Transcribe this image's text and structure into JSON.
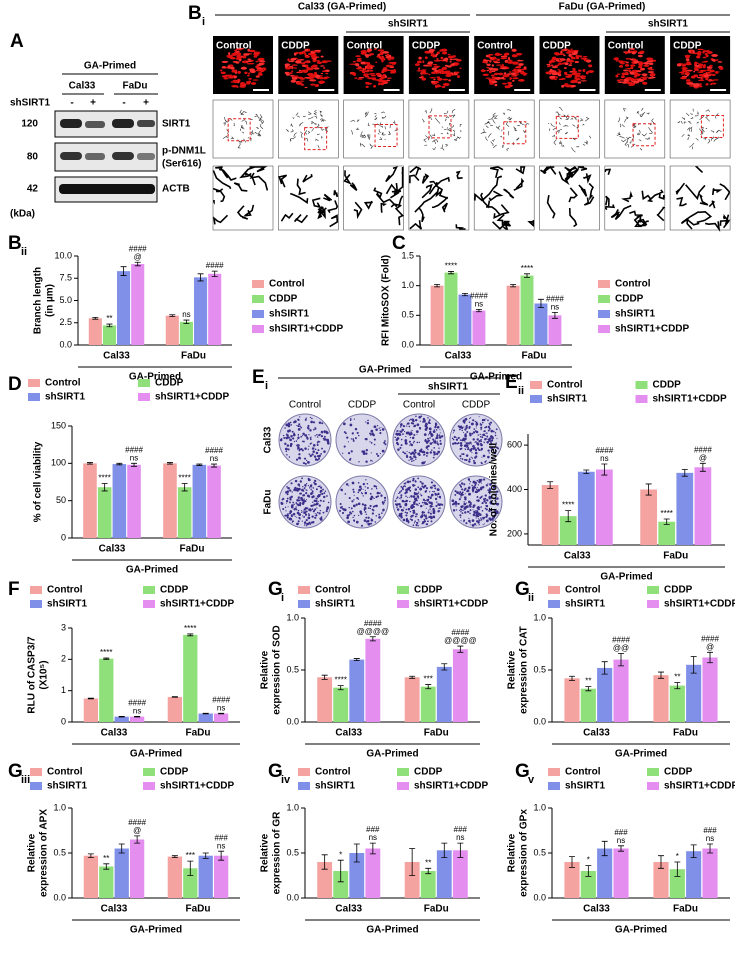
{
  "panel_A": {
    "label": "A",
    "group": "GA-Primed",
    "cell_lines": [
      "Cal33",
      "FaDu"
    ],
    "treatment_label": "shSIRT1",
    "lanes": [
      "-",
      "+",
      "-",
      "+"
    ],
    "proteins": [
      "SIRT1",
      "p-DNM1L",
      "ACTB"
    ],
    "protein_note": "(Ser616)",
    "markers": [
      "120",
      "80",
      "42"
    ],
    "unit": "(kDa)"
  },
  "panel_Bi": {
    "label": "B",
    "sub": "i",
    "groups": [
      "Cal33 (GA-Primed)",
      "FaDu (GA-Primed)"
    ],
    "subgroup": "shSIRT1",
    "images": [
      "Control",
      "CDDP",
      "Control",
      "CDDP",
      "Control",
      "CDDP",
      "Control",
      "CDDP"
    ]
  },
  "panel_Ei": {
    "label": "E",
    "sub": "i",
    "title": "GA-Primed",
    "subgroup": "shSIRT1",
    "columns": [
      "Control",
      "CDDP",
      "Control",
      "CDDP"
    ],
    "rows": [
      "Cal33",
      "FaDu"
    ]
  },
  "chart_data": [
    {
      "type": "bar",
      "panel": "B",
      "sub": "ii",
      "legend": "right",
      "ylabel": [
        "Branch length",
        "(in µm)"
      ],
      "categories": [
        "Cal33",
        "FaDu"
      ],
      "group_label": "GA-Primed",
      "ylim": [
        0,
        10
      ],
      "yticks": [
        {
          "value": 0,
          "label": "0.0"
        },
        {
          "value": 2.5,
          "label": "2.5"
        },
        {
          "value": 5,
          "label": "5.0"
        },
        {
          "value": 7.5,
          "label": "7.5"
        },
        {
          "value": 10,
          "label": "10.0"
        }
      ],
      "series": [
        {
          "name": "Control",
          "color": "#f4a3a0",
          "values": [
            3.0,
            3.3
          ],
          "errors": [
            0.1,
            0.1
          ],
          "marks": [
            null,
            null
          ]
        },
        {
          "name": "CDDP",
          "color": "#8fe07a",
          "values": [
            2.2,
            2.6
          ],
          "errors": [
            0.15,
            0.2
          ],
          "marks": [
            [
              "**"
            ],
            [
              "ns"
            ]
          ]
        },
        {
          "name": "shSIRT1",
          "color": "#8090e8",
          "values": [
            8.3,
            7.6
          ],
          "errors": [
            0.5,
            0.4
          ],
          "marks": [
            null,
            null
          ]
        },
        {
          "name": "shSIRT1+CDDP",
          "color": "#e48ff0",
          "values": [
            9.1,
            8.0
          ],
          "errors": [
            0.2,
            0.3
          ],
          "marks": [
            [
              "####",
              "@"
            ],
            [
              "####"
            ]
          ]
        }
      ]
    },
    {
      "type": "bar",
      "panel": "C",
      "legend": "right",
      "ylabel": [
        "RFI MitoSOX (Fold)"
      ],
      "categories": [
        "Cal33",
        "FaDu"
      ],
      "group_label": "GA-Primed",
      "ylim": [
        0,
        1.5
      ],
      "yticks": [
        {
          "value": 0,
          "label": "0.0"
        },
        {
          "value": 0.5,
          "label": "0.5"
        },
        {
          "value": 1,
          "label": "1.0"
        },
        {
          "value": 1.5,
          "label": "1.5"
        }
      ],
      "series": [
        {
          "name": "Control",
          "color": "#f4a3a0",
          "values": [
            1.0,
            1.0
          ],
          "errors": [
            0.02,
            0.02
          ],
          "marks": [
            null,
            null
          ]
        },
        {
          "name": "CDDP",
          "color": "#8fe07a",
          "values": [
            1.22,
            1.17
          ],
          "errors": [
            0.02,
            0.03
          ],
          "marks": [
            [
              "****"
            ],
            [
              "****"
            ]
          ]
        },
        {
          "name": "shSIRT1",
          "color": "#8090e8",
          "values": [
            0.85,
            0.7
          ],
          "errors": [
            0.02,
            0.07
          ],
          "marks": [
            null,
            null
          ]
        },
        {
          "name": "shSIRT1+CDDP",
          "color": "#e48ff0",
          "values": [
            0.58,
            0.5
          ],
          "errors": [
            0.02,
            0.05
          ],
          "marks": [
            [
              "####",
              "ns"
            ],
            [
              "####",
              "ns"
            ]
          ]
        }
      ]
    },
    {
      "type": "bar",
      "panel": "D",
      "legend": "top",
      "ylabel": [
        "% of cell viability"
      ],
      "categories": [
        "Cal33",
        "FaDu"
      ],
      "group_label": "GA-Primed",
      "ylim": [
        0,
        150
      ],
      "yticks": [
        0,
        50,
        100,
        150
      ],
      "series": [
        {
          "name": "Control",
          "color": "#f4a3a0",
          "values": [
            100,
            100
          ],
          "errors": [
            1,
            1
          ],
          "marks": [
            null,
            null
          ]
        },
        {
          "name": "CDDP",
          "color": "#8fe07a",
          "values": [
            68,
            68
          ],
          "errors": [
            5,
            5
          ],
          "marks": [
            [
              "****"
            ],
            [
              "****"
            ]
          ]
        },
        {
          "name": "shSIRT1",
          "color": "#8090e8",
          "values": [
            99,
            98
          ],
          "errors": [
            1,
            1
          ],
          "marks": [
            null,
            null
          ]
        },
        {
          "name": "shSIRT1+CDDP",
          "color": "#e48ff0",
          "values": [
            98,
            97
          ],
          "errors": [
            2,
            2
          ],
          "marks": [
            [
              "####",
              "ns"
            ],
            [
              "####",
              "ns"
            ]
          ]
        }
      ]
    },
    {
      "type": "bar",
      "panel": "E",
      "sub": "ii",
      "legend": "top",
      "ylabel": [
        "No. of colonies/well"
      ],
      "categories": [
        "Cal33",
        "FaDu"
      ],
      "group_label": "GA-Primed",
      "ylim": [
        150,
        650
      ],
      "yticks": [
        200,
        400,
        600
      ],
      "series": [
        {
          "name": "Control",
          "color": "#f4a3a0",
          "values": [
            420,
            400
          ],
          "errors": [
            15,
            25
          ],
          "marks": [
            null,
            null
          ]
        },
        {
          "name": "CDDP",
          "color": "#8fe07a",
          "values": [
            280,
            255
          ],
          "errors": [
            25,
            12
          ],
          "marks": [
            [
              "****"
            ],
            [
              "****"
            ]
          ]
        },
        {
          "name": "shSIRT1",
          "color": "#8090e8",
          "values": [
            480,
            475
          ],
          "errors": [
            8,
            15
          ],
          "marks": [
            null,
            null
          ]
        },
        {
          "name": "shSIRT1+CDDP",
          "color": "#e48ff0",
          "values": [
            490,
            500
          ],
          "errors": [
            25,
            18
          ],
          "marks": [
            [
              "####",
              "ns"
            ],
            [
              "####",
              "@"
            ]
          ]
        }
      ]
    },
    {
      "type": "bar",
      "panel": "F",
      "legend": "top",
      "ylabel": [
        "RLU of CASP3/7",
        "(X10⁵)"
      ],
      "categories": [
        "Cal33",
        "FaDu"
      ],
      "group_label": "GA-Primed",
      "ylim": [
        0,
        3
      ],
      "yticks": [
        0,
        1,
        2,
        3
      ],
      "series": [
        {
          "name": "Control",
          "color": "#f4a3a0",
          "values": [
            0.75,
            0.8
          ],
          "errors": [
            0.01,
            0.01
          ],
          "marks": [
            null,
            null
          ]
        },
        {
          "name": "CDDP",
          "color": "#8fe07a",
          "values": [
            2.02,
            2.78
          ],
          "errors": [
            0.02,
            0.03
          ],
          "marks": [
            [
              "****"
            ],
            [
              "****"
            ]
          ]
        },
        {
          "name": "shSIRT1",
          "color": "#8090e8",
          "values": [
            0.17,
            0.27
          ],
          "errors": [
            0.01,
            0.01
          ],
          "marks": [
            null,
            null
          ]
        },
        {
          "name": "shSIRT1+CDDP",
          "color": "#e48ff0",
          "values": [
            0.17,
            0.27
          ],
          "errors": [
            0.01,
            0.01
          ],
          "marks": [
            [
              "####",
              "ns"
            ],
            [
              "####",
              "ns"
            ]
          ]
        }
      ]
    },
    {
      "type": "bar",
      "panel": "G",
      "sub": "i",
      "legend": "top",
      "ylabel": [
        "Relative",
        "expression of SOD"
      ],
      "categories": [
        "Cal33",
        "FaDu"
      ],
      "group_label": "GA-Primed",
      "ylim": [
        0,
        1
      ],
      "yticks": [
        {
          "value": 0,
          "label": "0.0"
        },
        {
          "value": 0.5,
          "label": "0.5"
        },
        {
          "value": 1,
          "label": "1.0"
        }
      ],
      "series": [
        {
          "name": "Control",
          "color": "#f4a3a0",
          "values": [
            0.43,
            0.43
          ],
          "errors": [
            0.02,
            0.01
          ],
          "marks": [
            null,
            null
          ]
        },
        {
          "name": "CDDP",
          "color": "#8fe07a",
          "values": [
            0.33,
            0.34
          ],
          "errors": [
            0.02,
            0.02
          ],
          "marks": [
            [
              "****"
            ],
            [
              "***"
            ]
          ]
        },
        {
          "name": "shSIRT1",
          "color": "#8090e8",
          "values": [
            0.6,
            0.53
          ],
          "errors": [
            0.01,
            0.03
          ],
          "marks": [
            null,
            null
          ]
        },
        {
          "name": "shSIRT1+CDDP",
          "color": "#e48ff0",
          "values": [
            0.8,
            0.7
          ],
          "errors": [
            0.02,
            0.03
          ],
          "marks": [
            [
              "####",
              "@@@@"
            ],
            [
              "####",
              "@@@@"
            ]
          ]
        }
      ]
    },
    {
      "type": "bar",
      "panel": "G",
      "sub": "ii",
      "legend": "top",
      "ylabel": [
        "Relative",
        "expression of CAT"
      ],
      "categories": [
        "Cal33",
        "FaDu"
      ],
      "group_label": "GA-Primed",
      "ylim": [
        0,
        1
      ],
      "yticks": [
        {
          "value": 0,
          "label": "0.0"
        },
        {
          "value": 0.5,
          "label": "0.5"
        },
        {
          "value": 1,
          "label": "1.0"
        }
      ],
      "series": [
        {
          "name": "Control",
          "color": "#f4a3a0",
          "values": [
            0.42,
            0.45
          ],
          "errors": [
            0.02,
            0.03
          ],
          "marks": [
            null,
            null
          ]
        },
        {
          "name": "CDDP",
          "color": "#8fe07a",
          "values": [
            0.32,
            0.35
          ],
          "errors": [
            0.02,
            0.03
          ],
          "marks": [
            [
              "**"
            ],
            [
              "**"
            ]
          ]
        },
        {
          "name": "shSIRT1",
          "color": "#8090e8",
          "values": [
            0.52,
            0.55
          ],
          "errors": [
            0.06,
            0.08
          ],
          "marks": [
            null,
            null
          ]
        },
        {
          "name": "shSIRT1+CDDP",
          "color": "#e48ff0",
          "values": [
            0.6,
            0.62
          ],
          "errors": [
            0.06,
            0.05
          ],
          "marks": [
            [
              "####",
              "@@"
            ],
            [
              "####",
              "@"
            ]
          ]
        }
      ]
    },
    {
      "type": "bar",
      "panel": "G",
      "sub": "iii",
      "legend": "top",
      "ylabel": [
        "Relative",
        "expression of APX"
      ],
      "categories": [
        "Cal33",
        "FaDu"
      ],
      "group_label": "GA-Primed",
      "ylim": [
        0,
        1
      ],
      "yticks": [
        {
          "value": 0,
          "label": "0.0"
        },
        {
          "value": 0.5,
          "label": "0.5"
        },
        {
          "value": 1,
          "label": "1.0"
        }
      ],
      "series": [
        {
          "name": "Control",
          "color": "#f4a3a0",
          "values": [
            0.47,
            0.46
          ],
          "errors": [
            0.02,
            0.01
          ],
          "marks": [
            null,
            null
          ]
        },
        {
          "name": "CDDP",
          "color": "#8fe07a",
          "values": [
            0.35,
            0.33
          ],
          "errors": [
            0.03,
            0.08
          ],
          "marks": [
            [
              "**"
            ],
            [
              "***"
            ]
          ]
        },
        {
          "name": "shSIRT1",
          "color": "#8090e8",
          "values": [
            0.55,
            0.47
          ],
          "errors": [
            0.05,
            0.03
          ],
          "marks": [
            null,
            null
          ]
        },
        {
          "name": "shSIRT1+CDDP",
          "color": "#e48ff0",
          "values": [
            0.65,
            0.47
          ],
          "errors": [
            0.04,
            0.05
          ],
          "marks": [
            [
              "####",
              "@"
            ],
            [
              "###",
              "ns"
            ]
          ]
        }
      ]
    },
    {
      "type": "bar",
      "panel": "G",
      "sub": "iv",
      "legend": "top",
      "ylabel": [
        "Relative",
        "expression of GR"
      ],
      "categories": [
        "Cal33",
        "FaDu"
      ],
      "group_label": "GA-Primed",
      "ylim": [
        0,
        1
      ],
      "yticks": [
        {
          "value": 0,
          "label": "0.0"
        },
        {
          "value": 0.5,
          "label": "0.5"
        },
        {
          "value": 1,
          "label": "1.0"
        }
      ],
      "series": [
        {
          "name": "Control",
          "color": "#f4a3a0",
          "values": [
            0.4,
            0.4
          ],
          "errors": [
            0.08,
            0.15
          ],
          "marks": [
            null,
            null
          ]
        },
        {
          "name": "CDDP",
          "color": "#8fe07a",
          "values": [
            0.3,
            0.3
          ],
          "errors": [
            0.12,
            0.03
          ],
          "marks": [
            [
              "*"
            ],
            [
              "**"
            ]
          ]
        },
        {
          "name": "shSIRT1",
          "color": "#8090e8",
          "values": [
            0.5,
            0.53
          ],
          "errors": [
            0.1,
            0.08
          ],
          "marks": [
            null,
            null
          ]
        },
        {
          "name": "shSIRT1+CDDP",
          "color": "#e48ff0",
          "values": [
            0.55,
            0.53
          ],
          "errors": [
            0.06,
            0.08
          ],
          "marks": [
            [
              "###",
              "ns"
            ],
            [
              "###",
              "ns"
            ]
          ]
        }
      ]
    },
    {
      "type": "bar",
      "panel": "G",
      "sub": "v",
      "legend": "top",
      "ylabel": [
        "Relative",
        "expression of GPx"
      ],
      "categories": [
        "Cal33",
        "FaDu"
      ],
      "group_label": "GA-Primed",
      "ylim": [
        0,
        1
      ],
      "yticks": [
        {
          "value": 0,
          "label": "0.0"
        },
        {
          "value": 0.5,
          "label": "0.5"
        },
        {
          "value": 1,
          "label": "1.0"
        }
      ],
      "series": [
        {
          "name": "Control",
          "color": "#f4a3a0",
          "values": [
            0.4,
            0.4
          ],
          "errors": [
            0.06,
            0.07
          ],
          "marks": [
            null,
            null
          ]
        },
        {
          "name": "CDDP",
          "color": "#8fe07a",
          "values": [
            0.3,
            0.32
          ],
          "errors": [
            0.06,
            0.08
          ],
          "marks": [
            [
              "*"
            ],
            [
              "*"
            ]
          ]
        },
        {
          "name": "shSIRT1",
          "color": "#8090e8",
          "values": [
            0.55,
            0.52
          ],
          "errors": [
            0.08,
            0.07
          ],
          "marks": [
            null,
            null
          ]
        },
        {
          "name": "shSIRT1+CDDP",
          "color": "#e48ff0",
          "values": [
            0.55,
            0.55
          ],
          "errors": [
            0.03,
            0.05
          ],
          "marks": [
            [
              "###",
              "ns"
            ],
            [
              "###",
              "ns"
            ]
          ]
        }
      ]
    }
  ]
}
